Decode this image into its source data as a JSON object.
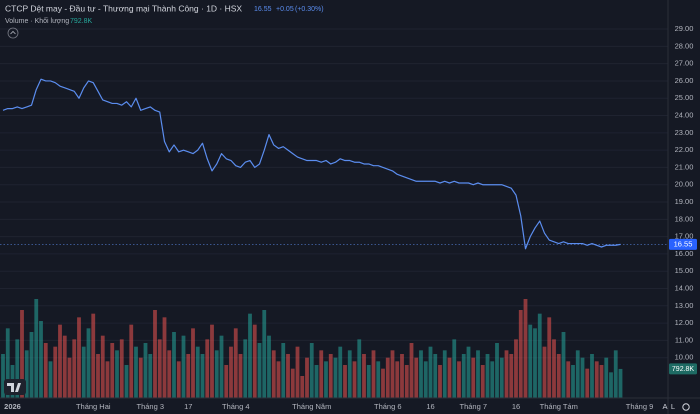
{
  "chart_data": {
    "type": "line",
    "title": "CTCP Dệt may - Đầu tư - Thương mại Thành Công · 1D · HSX",
    "last_price": 16.55,
    "change": {
      "value": 0.05,
      "label": "+0.05"
    },
    "change_pct": {
      "value": 0.3,
      "label": "(+0.30%)"
    },
    "line_color": "#5b8def",
    "up_color": "#26a69a",
    "down_color": "#ef5350",
    "categories": [
      null,
      null,
      "2026",
      null,
      null,
      null,
      null,
      null,
      null,
      null,
      null,
      null,
      null,
      null,
      null,
      null,
      null,
      null,
      null,
      "Tháng Hai",
      null,
      null,
      null,
      null,
      null,
      null,
      null,
      null,
      null,
      null,
      null,
      "Tháng 3",
      null,
      null,
      null,
      null,
      null,
      null,
      null,
      "17",
      null,
      null,
      null,
      null,
      null,
      null,
      null,
      null,
      null,
      "Tháng 4",
      null,
      null,
      null,
      null,
      null,
      null,
      null,
      null,
      null,
      null,
      null,
      null,
      null,
      null,
      null,
      "Tháng Năm",
      null,
      null,
      null,
      null,
      null,
      null,
      null,
      null,
      null,
      null,
      null,
      null,
      null,
      null,
      null,
      "Tháng 6",
      null,
      null,
      null,
      null,
      null,
      null,
      null,
      null,
      "16",
      null,
      null,
      null,
      null,
      null,
      null,
      null,
      null,
      "Tháng 7",
      null,
      null,
      null,
      null,
      null,
      null,
      null,
      null,
      "16",
      null,
      null,
      null,
      null,
      null,
      null,
      null,
      null,
      "Tháng Tám",
      null,
      null,
      null,
      null,
      null,
      null,
      null,
      null,
      null,
      null,
      null,
      null,
      null,
      null,
      null,
      null,
      "Tháng 9",
      null,
      null,
      null,
      null,
      null
    ],
    "values": [
      24.3,
      24.4,
      24.4,
      24.5,
      24.4,
      24.5,
      24.6,
      25.5,
      26.1,
      26.0,
      26.0,
      25.9,
      25.7,
      25.6,
      25.5,
      25.4,
      25.0,
      25.6,
      26.0,
      25.9,
      25.4,
      24.9,
      24.8,
      24.7,
      24.7,
      24.6,
      24.8,
      24.5,
      25.0,
      24.3,
      24.4,
      24.5,
      24.3,
      24.2,
      22.5,
      21.9,
      22.3,
      21.9,
      22.0,
      21.9,
      21.8,
      22.0,
      22.4,
      21.5,
      20.8,
      21.2,
      21.8,
      21.5,
      21.4,
      21.1,
      21.0,
      21.3,
      21.4,
      21.0,
      21.2,
      22.0,
      22.9,
      22.3,
      22.1,
      22.2,
      22.0,
      21.8,
      21.6,
      21.5,
      21.4,
      21.4,
      21.4,
      21.3,
      21.4,
      21.2,
      21.3,
      21.5,
      21.4,
      21.4,
      21.3,
      21.3,
      21.2,
      21.2,
      21.1,
      21.1,
      21.0,
      20.9,
      20.8,
      20.6,
      20.5,
      20.4,
      20.3,
      20.2,
      20.2,
      20.2,
      20.2,
      20.2,
      20.1,
      20.2,
      20.1,
      20.2,
      20.1,
      20.1,
      20.1,
      20.0,
      20.1,
      20.0,
      20.0,
      20.0,
      20.0,
      20.0,
      19.9,
      19.8,
      19.4,
      18.2,
      16.3,
      17.0,
      17.5,
      17.9,
      17.2,
      16.8,
      16.7,
      16.6,
      16.7,
      16.6,
      16.6,
      16.6,
      16.6,
      16.5,
      16.6,
      16.5,
      16.4,
      16.5,
      16.5,
      16.5,
      16.55,
      null,
      null,
      null,
      null,
      null,
      null,
      null,
      null,
      null
    ],
    "ylim": [
      7.67,
      30.68
    ],
    "yticks": [
      {
        "value": 10,
        "label": "10.00"
      },
      {
        "value": 11,
        "label": "11.00"
      },
      {
        "value": 12,
        "label": "12.00"
      },
      {
        "value": 13,
        "label": "13.00"
      },
      {
        "value": 14,
        "label": "14.00"
      },
      {
        "value": 15,
        "label": "15.00"
      },
      {
        "value": 16,
        "label": "16.00"
      },
      {
        "value": 17,
        "label": "17.00"
      },
      {
        "value": 18,
        "label": "18.00"
      },
      {
        "value": 19,
        "label": "19.00"
      },
      {
        "value": 20,
        "label": "20.00"
      },
      {
        "value": 21,
        "label": "21.00"
      },
      {
        "value": 22,
        "label": "22.00"
      },
      {
        "value": 23,
        "label": "23.00"
      },
      {
        "value": 24,
        "label": "24.00"
      },
      {
        "value": 25,
        "label": "25.00"
      },
      {
        "value": 26,
        "label": "26.00"
      },
      {
        "value": 27,
        "label": "27.00"
      },
      {
        "value": 28,
        "label": "28.00"
      },
      {
        "value": 29,
        "label": "29.00"
      }
    ],
    "grid": true,
    "volume": {
      "name": "Volume · Khối lượng",
      "axis": "y2",
      "values": [
        1200,
        1900,
        900,
        1600,
        2400,
        1300,
        1800,
        2700,
        2100,
        1500,
        1000,
        1400,
        2000,
        1700,
        1100,
        1600,
        2200,
        1400,
        1900,
        2300,
        1200,
        1700,
        1000,
        1500,
        1300,
        1600,
        900,
        2000,
        1400,
        1100,
        1500,
        1200,
        2400,
        1600,
        2200,
        1300,
        1800,
        1000,
        1700,
        1200,
        1900,
        1400,
        1200,
        1600,
        2000,
        1300,
        1700,
        900,
        1400,
        1900,
        1200,
        1600,
        2300,
        2000,
        1500,
        2400,
        1700,
        1300,
        1000,
        1500,
        1200,
        800,
        1400,
        600,
        1100,
        1500,
        900,
        1300,
        1000,
        1200,
        1100,
        1400,
        900,
        1300,
        1000,
        1600,
        1200,
        900,
        1300,
        1000,
        800,
        1100,
        1300,
        1000,
        1200,
        900,
        1500,
        1100,
        1300,
        1000,
        1400,
        1200,
        900,
        1300,
        1100,
        1600,
        1000,
        1200,
        1400,
        1100,
        1300,
        900,
        1200,
        1000,
        1500,
        1100,
        1300,
        1200,
        1600,
        2400,
        2700,
        2000,
        1900,
        2300,
        1400,
        2200,
        1600,
        1200,
        1800,
        1000,
        900,
        1300,
        1100,
        800,
        1200,
        1000,
        900,
        1100,
        700,
        1300,
        792.8,
        null,
        null,
        null,
        null,
        null,
        null,
        null,
        null,
        null
      ],
      "last": {
        "value": 792.8,
        "label": "792.8K"
      }
    },
    "y2lim": [
      0,
      3000
    ],
    "controls": [
      "A",
      "L"
    ]
  }
}
